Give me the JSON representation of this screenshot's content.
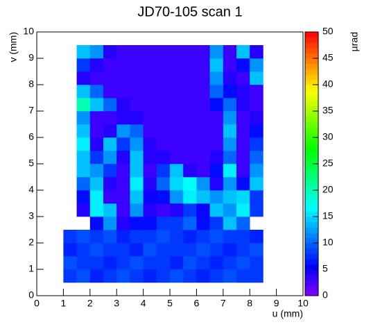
{
  "chart_data": {
    "type": "heatmap",
    "title": "JD70-105 scan 1",
    "x_label": "u (mm)",
    "y_label": "v (mm)",
    "z_label": "µrad",
    "colormap": "rainbow",
    "xlim": [
      0,
      10
    ],
    "ylim": [
      0,
      10
    ],
    "zlim": [
      0,
      50
    ],
    "xticks": [
      0,
      1,
      2,
      3,
      4,
      5,
      6,
      7,
      8,
      9,
      10
    ],
    "yticks": [
      0,
      1,
      2,
      3,
      4,
      5,
      6,
      7,
      8,
      9,
      10
    ],
    "zticks": [
      0,
      5,
      10,
      15,
      20,
      25,
      30,
      35,
      40,
      45,
      50
    ],
    "xbins": [
      1,
      1.5,
      2,
      2.5,
      3,
      3.5,
      4,
      4.5,
      5,
      5.5,
      6,
      6.5,
      7,
      7.5,
      8,
      8.5
    ],
    "ybins": [
      0.5,
      1,
      1.5,
      2,
      2.5,
      3,
      3.5,
      4,
      4.5,
      5,
      5.5,
      6,
      6.5,
      7,
      7.5,
      8,
      8.5,
      9,
      9.5
    ],
    "z": [
      [
        8,
        9,
        7,
        8,
        9,
        8,
        7,
        8,
        9,
        8,
        7,
        8,
        9,
        8,
        8
      ],
      [
        9,
        8,
        8,
        7,
        8,
        9,
        8,
        8,
        7,
        9,
        8,
        7,
        8,
        9,
        8
      ],
      [
        7,
        8,
        9,
        8,
        8,
        7,
        9,
        8,
        8,
        8,
        9,
        8,
        7,
        8,
        9
      ],
      [
        8,
        9,
        8,
        9,
        7,
        8,
        8,
        9,
        8,
        7,
        8,
        9,
        8,
        8,
        7
      ],
      [
        null,
        null,
        6,
        12,
        4,
        6,
        6,
        8,
        8,
        10,
        6,
        8,
        14,
        10,
        null
      ],
      [
        null,
        4,
        16,
        14,
        3,
        12,
        4,
        3,
        4,
        8,
        5,
        14,
        12,
        16,
        8
      ],
      [
        null,
        6,
        16,
        3,
        3,
        14,
        5,
        6,
        12,
        16,
        14,
        12,
        14,
        15,
        8
      ],
      [
        null,
        10,
        14,
        4,
        3,
        16,
        4,
        10,
        15,
        17,
        12,
        4,
        12,
        6,
        14
      ],
      [
        null,
        14,
        12,
        8,
        3,
        14,
        3,
        8,
        14,
        4,
        3,
        6,
        16,
        3,
        12
      ],
      [
        null,
        14,
        8,
        12,
        4,
        14,
        4,
        4,
        3,
        3,
        3,
        4,
        10,
        3,
        10
      ],
      [
        null,
        16,
        4,
        14,
        8,
        12,
        4,
        3,
        3,
        3,
        3,
        3,
        12,
        3,
        8
      ],
      [
        null,
        14,
        3,
        4,
        12,
        10,
        3,
        3,
        3,
        3,
        3,
        3,
        14,
        3,
        6
      ],
      [
        null,
        12,
        3,
        3,
        4,
        4,
        3,
        3,
        3,
        3,
        3,
        3,
        12,
        3,
        4
      ],
      [
        null,
        20,
        14,
        10,
        4,
        3,
        3,
        3,
        3,
        3,
        3,
        6,
        10,
        4,
        3
      ],
      [
        null,
        14,
        10,
        3,
        3,
        3,
        3,
        3,
        3,
        3,
        3,
        10,
        6,
        4,
        3
      ],
      [
        null,
        4,
        3,
        3,
        3,
        3,
        3,
        3,
        3,
        3,
        3,
        12,
        4,
        3,
        14
      ],
      [
        null,
        8,
        4,
        3,
        3,
        3,
        3,
        3,
        3,
        3,
        3,
        14,
        3,
        6,
        12
      ],
      [
        null,
        14,
        12,
        4,
        3,
        3,
        3,
        3,
        3,
        3,
        3,
        12,
        3,
        14,
        4
      ]
    ]
  }
}
